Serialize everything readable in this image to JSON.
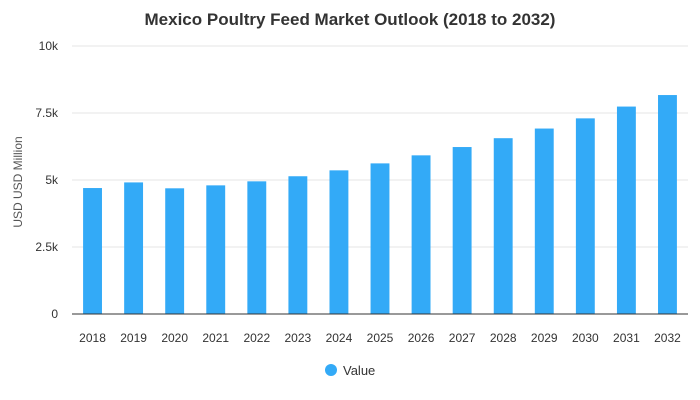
{
  "chart_data": {
    "type": "bar",
    "title": "Mexico Poultry Feed Market Outlook (2018 to 2032)",
    "ylabel": "USD USD Million",
    "xlabel": "",
    "categories": [
      "2018",
      "2019",
      "2020",
      "2021",
      "2022",
      "2023",
      "2024",
      "2025",
      "2026",
      "2027",
      "2028",
      "2029",
      "2030",
      "2031",
      "2032"
    ],
    "series": [
      {
        "name": "Value",
        "color": "#33aaf7",
        "values": [
          4700,
          4910,
          4690,
          4800,
          4950,
          5140,
          5360,
          5620,
          5920,
          6230,
          6560,
          6920,
          7300,
          7740,
          8170
        ]
      }
    ],
    "ylim": [
      0,
      10000
    ],
    "yticks": [
      {
        "value": 0,
        "label": "0"
      },
      {
        "value": 2500,
        "label": "2.5k"
      },
      {
        "value": 5000,
        "label": "5k"
      },
      {
        "value": 7500,
        "label": "7.5k"
      },
      {
        "value": 10000,
        "label": "10k"
      }
    ],
    "grid": true,
    "legend_position": "bottom"
  }
}
